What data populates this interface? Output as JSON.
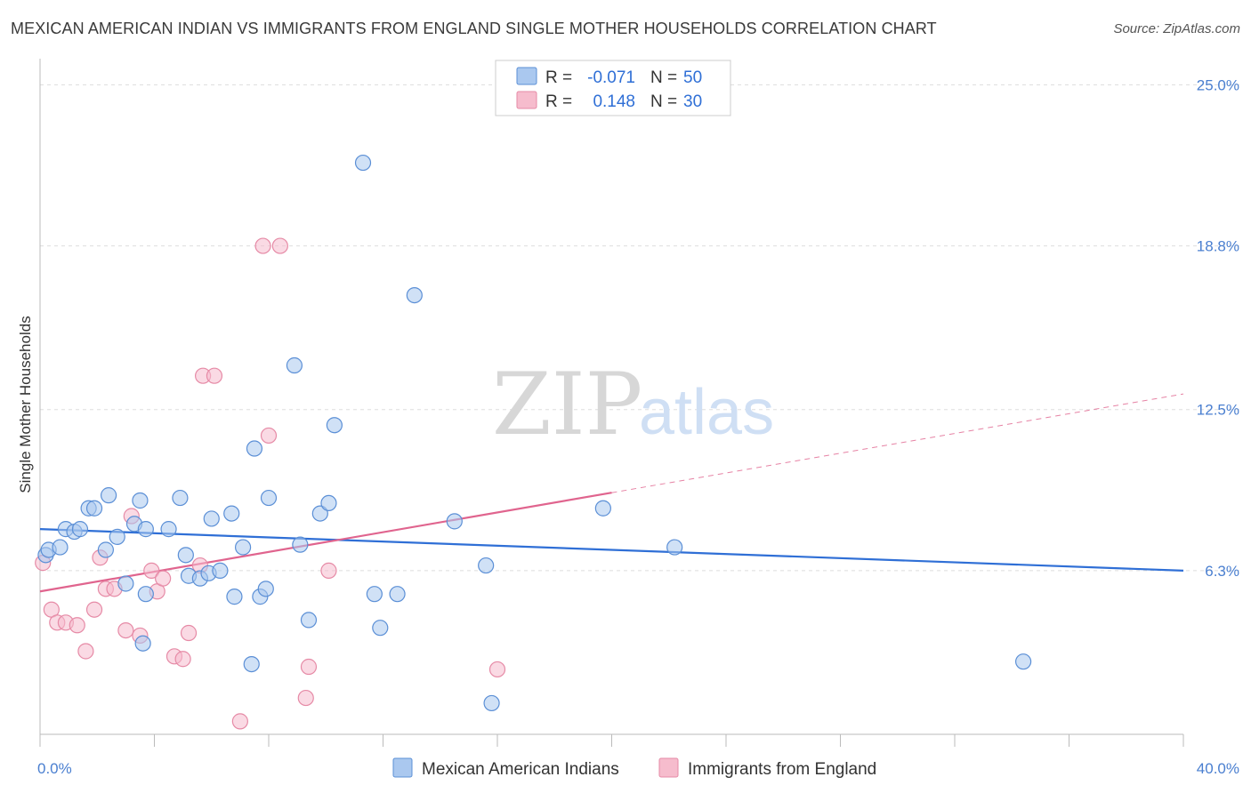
{
  "title": "MEXICAN AMERICAN INDIAN VS IMMIGRANTS FROM ENGLAND SINGLE MOTHER HOUSEHOLDS CORRELATION CHART",
  "source": "Source: ZipAtlas.com",
  "watermark": {
    "zip": "ZIP",
    "atlas": "atlas"
  },
  "colors": {
    "blue_fill": "#aac8ef",
    "blue_stroke": "#5b8fd6",
    "blue_line": "#2f6fd6",
    "pink_fill": "#f6bccd",
    "pink_stroke": "#e68aa6",
    "pink_line": "#e0648e",
    "tick_label": "#4a7fd0",
    "grid": "#dddddd"
  },
  "legend": {
    "rows": [
      {
        "r_label": "R =",
        "r_value": "-0.071",
        "n_label": "N =",
        "n_value": "50"
      },
      {
        "r_label": "R =",
        "r_value": "0.148",
        "n_label": "N =",
        "n_value": "30"
      }
    ]
  },
  "chart_data": {
    "type": "scatter",
    "xlabel": "",
    "ylabel": "Single Mother Households",
    "xlim": [
      0,
      40
    ],
    "ylim": [
      0,
      25.8
    ],
    "x_tick_labels": [
      "0.0%",
      "40.0%"
    ],
    "y_ticks": [
      {
        "value": 6.3,
        "label": "6.3%"
      },
      {
        "value": 12.5,
        "label": "12.5%"
      },
      {
        "value": 18.8,
        "label": "18.8%"
      },
      {
        "value": 25.0,
        "label": "25.0%"
      }
    ],
    "series": [
      {
        "name": "Mexican American Indians",
        "points": [
          [
            0.2,
            6.9
          ],
          [
            0.3,
            7.1
          ],
          [
            0.7,
            7.2
          ],
          [
            0.9,
            7.9
          ],
          [
            1.2,
            7.8
          ],
          [
            1.4,
            7.9
          ],
          [
            1.7,
            8.7
          ],
          [
            1.9,
            8.7
          ],
          [
            2.3,
            7.1
          ],
          [
            2.4,
            9.2
          ],
          [
            2.7,
            7.6
          ],
          [
            3.0,
            5.8
          ],
          [
            3.3,
            8.1
          ],
          [
            3.5,
            9.0
          ],
          [
            3.6,
            3.5
          ],
          [
            3.7,
            5.4
          ],
          [
            3.7,
            7.9
          ],
          [
            4.5,
            7.9
          ],
          [
            4.9,
            9.1
          ],
          [
            5.1,
            6.9
          ],
          [
            5.2,
            6.1
          ],
          [
            5.6,
            6.0
          ],
          [
            5.9,
            6.2
          ],
          [
            6.0,
            8.3
          ],
          [
            6.3,
            6.3
          ],
          [
            6.7,
            8.5
          ],
          [
            6.8,
            5.3
          ],
          [
            7.1,
            7.2
          ],
          [
            7.4,
            2.7
          ],
          [
            7.5,
            11.0
          ],
          [
            7.7,
            5.3
          ],
          [
            7.9,
            5.6
          ],
          [
            8.0,
            9.1
          ],
          [
            8.9,
            14.2
          ],
          [
            9.1,
            7.3
          ],
          [
            9.4,
            4.4
          ],
          [
            9.8,
            8.5
          ],
          [
            10.1,
            8.9
          ],
          [
            10.3,
            11.9
          ],
          [
            11.3,
            22.0
          ],
          [
            11.7,
            5.4
          ],
          [
            11.9,
            4.1
          ],
          [
            12.5,
            5.4
          ],
          [
            13.1,
            16.9
          ],
          [
            14.5,
            8.2
          ],
          [
            15.6,
            6.5
          ],
          [
            15.8,
            1.2
          ],
          [
            19.7,
            8.7
          ],
          [
            22.2,
            7.2
          ],
          [
            34.4,
            2.8
          ]
        ],
        "trend": {
          "x": [
            0,
            40
          ],
          "y": [
            7.9,
            6.3
          ]
        }
      },
      {
        "name": "Immigrants from England",
        "points": [
          [
            0.1,
            6.6
          ],
          [
            0.4,
            4.8
          ],
          [
            0.6,
            4.3
          ],
          [
            0.9,
            4.3
          ],
          [
            1.3,
            4.2
          ],
          [
            1.6,
            3.2
          ],
          [
            1.9,
            4.8
          ],
          [
            2.1,
            6.8
          ],
          [
            2.3,
            5.6
          ],
          [
            2.6,
            5.6
          ],
          [
            3.0,
            4.0
          ],
          [
            3.2,
            8.4
          ],
          [
            3.5,
            3.8
          ],
          [
            3.9,
            6.3
          ],
          [
            4.1,
            5.5
          ],
          [
            4.3,
            6.0
          ],
          [
            4.7,
            3.0
          ],
          [
            5.0,
            2.9
          ],
          [
            5.2,
            3.9
          ],
          [
            5.6,
            6.5
          ],
          [
            5.7,
            13.8
          ],
          [
            6.1,
            13.8
          ],
          [
            7.0,
            0.5
          ],
          [
            7.8,
            18.8
          ],
          [
            8.0,
            11.5
          ],
          [
            8.4,
            18.8
          ],
          [
            9.3,
            1.4
          ],
          [
            9.4,
            2.6
          ],
          [
            10.1,
            6.3
          ],
          [
            16.0,
            2.5
          ]
        ],
        "trend": {
          "x": [
            0,
            20
          ],
          "y": [
            5.5,
            9.3
          ]
        },
        "trend_dashed": {
          "x": [
            20,
            40
          ],
          "y": [
            9.3,
            13.1
          ]
        }
      }
    ],
    "grid": true,
    "legend_position": "bottom"
  }
}
